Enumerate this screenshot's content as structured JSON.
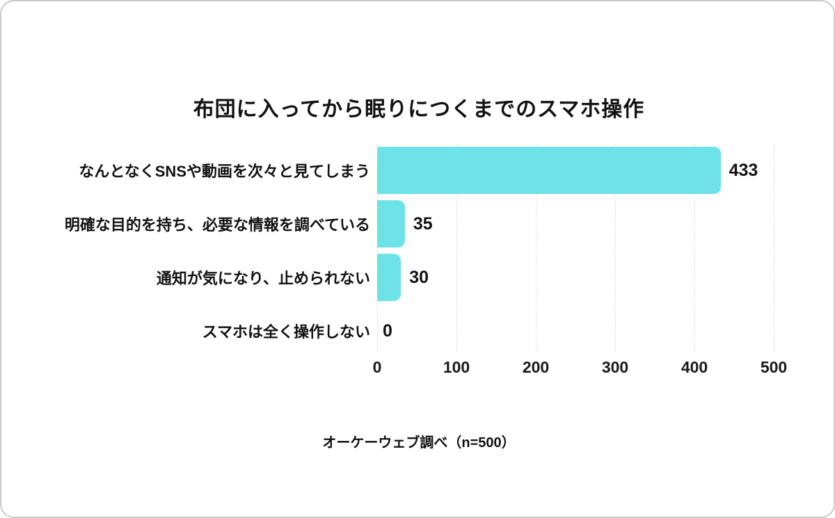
{
  "colors": {
    "bar": "#6EE3E7",
    "gridline": "#d7dedf",
    "card_border": "#cbcbcb",
    "text": "#111111"
  },
  "source_note": "オーケーウェブ調べ（n=500）",
  "chart_data": {
    "type": "bar",
    "orientation": "horizontal",
    "title": "布団に入ってから眠りにつくまでのスマホ操作",
    "categories": [
      "なんとなくSNSや動画を次々と見てしまう",
      "明確な目的を持ち、必要な情報を調べている",
      "通知が気になり、止められない",
      "スマホは全く操作しない"
    ],
    "values": [
      433,
      35,
      30,
      0
    ],
    "xlabel": "",
    "ylabel": "",
    "xlim": [
      0,
      500
    ],
    "xticks": [
      0,
      100,
      200,
      300,
      400,
      500
    ],
    "grid": "vertical-dashed",
    "legend": "none",
    "bar_color": "#6EE3E7",
    "source_note": "オーケーウェブ調べ（n=500）"
  }
}
